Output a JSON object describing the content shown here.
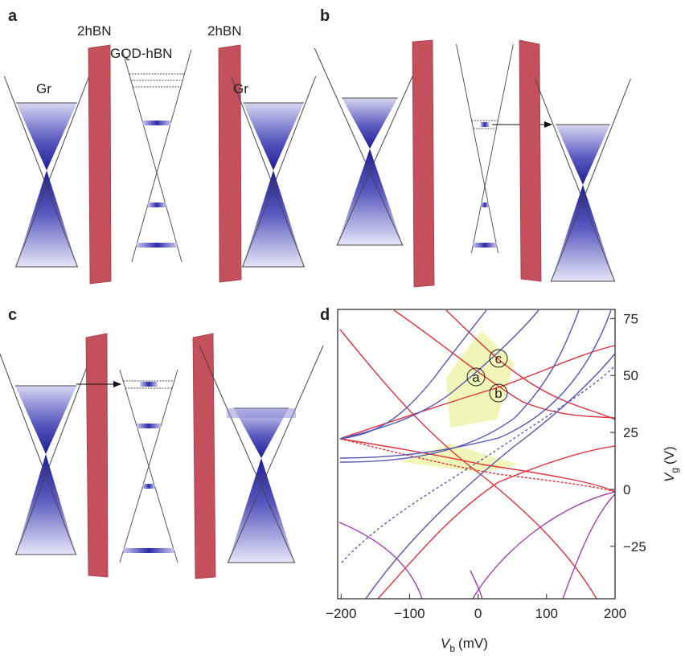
{
  "panel_labels": [
    "a",
    "b",
    "c",
    "d"
  ],
  "panel_a": {
    "left_barrier": "2hBN",
    "dot": "GQD-hBN",
    "right_barrier": "2hBN",
    "left_electrode": "Gr",
    "right_electrode": "Gr"
  },
  "chart_data": {
    "type": "line",
    "x_label": {
      "symbol": "V",
      "subscript": "b",
      "unit": "(mV)"
    },
    "y_label": {
      "symbol": "V",
      "subscript": "g",
      "unit": "(V)"
    },
    "annotations": [
      "a",
      "b",
      "c"
    ],
    "xlim": [
      -205,
      200
    ],
    "xticks": [
      {
        "value": -200,
        "label": "−200"
      },
      {
        "value": -100,
        "label": "−100"
      },
      0,
      100,
      200
    ],
    "ylim": [
      -48,
      79
    ],
    "yticks": [
      {
        "value": -25,
        "label": "−25"
      },
      0,
      25,
      50,
      75
    ]
  }
}
